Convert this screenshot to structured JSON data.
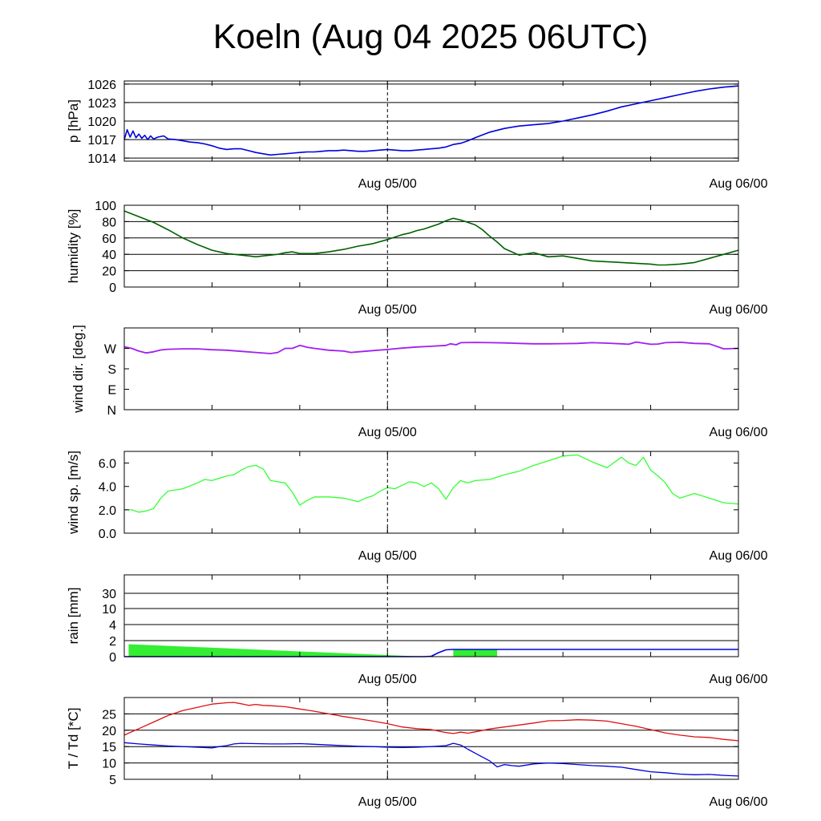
{
  "title": "Koeln (Aug 04 2025 06UTC)",
  "colors": {
    "pressure": "#0000e0",
    "humidity": "#006000",
    "wind_dir": "#a020f0",
    "wind_speed": "#33ff33",
    "rain_fill": "#33ee33",
    "rain_line": "#0000e0",
    "temperature": "#e01010",
    "dewpoint": "#0000e0",
    "gridline": "#000000"
  },
  "chart_data": [
    {
      "type": "line",
      "ylabel": "p [hPa]",
      "x_unit": "hours from Aug 04 06UTC",
      "xlim": [
        0,
        42
      ],
      "x_ticks": [
        {
          "x": 18,
          "label": "Aug 05/00"
        },
        {
          "x": 42,
          "label": "Aug 06/00"
        }
      ],
      "vline_x": 18,
      "ylim": [
        1013.5,
        1026.5
      ],
      "y_ticks": [
        "1014",
        "1017",
        "1020",
        "1023",
        "1026"
      ],
      "grid": true,
      "series": [
        {
          "x": [
            0,
            0.2,
            0.4,
            0.6,
            0.8,
            1,
            1.2,
            1.4,
            1.6,
            1.8,
            2,
            2.3,
            2.7,
            3,
            3.5,
            4,
            4.5,
            5,
            5.5,
            6,
            6.5,
            7,
            7.5,
            8,
            8.5,
            9,
            9.5,
            10,
            10.5,
            11,
            11.5,
            12,
            12.5,
            13,
            13.5,
            14,
            14.5,
            15,
            15.5,
            16,
            16.5,
            17,
            17.5,
            18,
            18.5,
            19,
            19.5,
            20,
            20.5,
            21,
            21.5,
            22,
            22.5,
            23,
            23.5,
            24,
            25,
            26,
            27,
            28,
            29,
            30,
            31,
            32,
            33,
            34,
            35,
            36,
            37,
            38,
            39,
            40,
            41,
            41.5,
            42
          ],
          "y": [
            1017.0,
            1018.6,
            1017.4,
            1018.4,
            1017.3,
            1017.9,
            1017.2,
            1017.7,
            1017.0,
            1017.6,
            1017.1,
            1017.4,
            1017.6,
            1017.1,
            1017.0,
            1016.8,
            1016.6,
            1016.5,
            1016.3,
            1016.0,
            1015.6,
            1015.4,
            1015.5,
            1015.5,
            1015.2,
            1014.9,
            1014.7,
            1014.5,
            1014.6,
            1014.7,
            1014.8,
            1014.9,
            1015.0,
            1015.0,
            1015.1,
            1015.2,
            1015.2,
            1015.3,
            1015.2,
            1015.1,
            1015.1,
            1015.2,
            1015.3,
            1015.4,
            1015.3,
            1015.2,
            1015.2,
            1015.3,
            1015.4,
            1015.5,
            1015.6,
            1015.8,
            1016.2,
            1016.4,
            1016.8,
            1017.3,
            1018.2,
            1018.8,
            1019.2,
            1019.4,
            1019.6,
            1020.0,
            1020.5,
            1021.0,
            1021.6,
            1022.3,
            1022.8,
            1023.3,
            1023.8,
            1024.3,
            1024.8,
            1025.2,
            1025.5,
            1025.6,
            1025.7
          ]
        }
      ]
    },
    {
      "type": "line",
      "ylabel": "humidity [%]",
      "x_unit": "hours from Aug 04 06UTC",
      "xlim": [
        0,
        42
      ],
      "x_ticks": [
        {
          "x": 18,
          "label": "Aug 05/00"
        },
        {
          "x": 42,
          "label": "Aug 06/00"
        }
      ],
      "vline_x": 18,
      "ylim": [
        0,
        100
      ],
      "y_ticks": [
        "0",
        "20",
        "40",
        "60",
        "80",
        "100"
      ],
      "grid": true,
      "series": [
        {
          "x": [
            0,
            1,
            2,
            3,
            4,
            5,
            6,
            7,
            7.5,
            8,
            8.5,
            9,
            9.5,
            10,
            10.5,
            11,
            11.5,
            12,
            13,
            14,
            15,
            16,
            17,
            18,
            19,
            19.5,
            20,
            20.5,
            21,
            21.5,
            22,
            22.5,
            23,
            23.5,
            24,
            24.5,
            25,
            25.5,
            26,
            27,
            28,
            29,
            30,
            31,
            32,
            33,
            34,
            35,
            36,
            36.5,
            37,
            38,
            39,
            40,
            41,
            42
          ],
          "y": [
            93,
            86,
            79,
            70,
            60,
            52,
            45,
            41,
            40,
            39,
            38,
            37,
            38,
            39,
            40,
            42,
            43,
            41,
            41,
            43,
            46,
            50,
            53,
            58,
            64,
            66,
            69,
            71,
            74,
            77,
            81,
            84,
            82,
            79,
            76,
            70,
            62,
            55,
            47,
            39,
            42,
            37,
            38,
            35,
            32,
            31,
            30,
            29,
            28,
            27,
            27,
            28,
            30,
            35,
            40,
            45
          ]
        }
      ]
    },
    {
      "type": "line",
      "ylabel": "wind dir. [deg.]",
      "x_unit": "hours from Aug 04 06UTC",
      "xlim": [
        0,
        42
      ],
      "x_ticks": [
        {
          "x": 18,
          "label": "Aug 05/00"
        },
        {
          "x": 42,
          "label": "Aug 06/00"
        }
      ],
      "vline_x": 18,
      "ylim": [
        0,
        360
      ],
      "y_ticks": [
        "N",
        "E",
        "S",
        "W"
      ],
      "grid": false,
      "series": [
        {
          "x": [
            0,
            0.5,
            1,
            1.5,
            2,
            2.5,
            3,
            4,
            5,
            6,
            7,
            8,
            9,
            10,
            10.5,
            11,
            11.5,
            12,
            12.5,
            13,
            14,
            15,
            15.5,
            16,
            17,
            18,
            19,
            20,
            21,
            22,
            22.3,
            22.7,
            23,
            24,
            25,
            26,
            27,
            28,
            29,
            30,
            31,
            32,
            33,
            34,
            34.5,
            35,
            36,
            36.5,
            37,
            38,
            39,
            40,
            41,
            42
          ],
          "y": [
            277,
            270,
            258,
            250,
            255,
            263,
            266,
            268,
            268,
            264,
            262,
            257,
            252,
            247,
            252,
            270,
            270,
            283,
            275,
            270,
            262,
            258,
            252,
            255,
            260,
            265,
            271,
            276,
            279,
            283,
            290,
            286,
            295,
            296,
            295,
            294,
            292,
            290,
            290,
            291,
            292,
            295,
            293,
            290,
            288,
            298,
            288,
            289,
            295,
            297,
            292,
            290,
            268,
            270
          ]
        }
      ]
    },
    {
      "type": "line",
      "ylabel": "wind sp. [m/s]",
      "x_unit": "hours from Aug 04 06UTC",
      "xlim": [
        0,
        42
      ],
      "x_ticks": [
        {
          "x": 18,
          "label": "Aug 05/00"
        },
        {
          "x": 42,
          "label": "Aug 06/00"
        }
      ],
      "vline_x": 18,
      "ylim": [
        0,
        7
      ],
      "y_ticks": [
        "0.0",
        "2.0",
        "4.0",
        "6.0"
      ],
      "grid": false,
      "series": [
        {
          "x": [
            0,
            0.5,
            1,
            1.5,
            2,
            2.5,
            3,
            4,
            5,
            5.5,
            6,
            7,
            7.5,
            8,
            8.5,
            9,
            9.5,
            10,
            10.5,
            11,
            11.5,
            12,
            12.5,
            13,
            14,
            15,
            16,
            16.5,
            17,
            17.5,
            18,
            18.5,
            19,
            19.5,
            20,
            20.5,
            21,
            21.5,
            22,
            22.5,
            23,
            23.5,
            24,
            25,
            26,
            27,
            28,
            29,
            30,
            31,
            32,
            33,
            34,
            34.5,
            35,
            35.5,
            36,
            36.5,
            37,
            37.5,
            38,
            39,
            40,
            41,
            42
          ],
          "y": [
            2.0,
            2.0,
            1.8,
            1.9,
            2.1,
            3.0,
            3.6,
            3.8,
            4.3,
            4.6,
            4.5,
            4.9,
            5.0,
            5.4,
            5.7,
            5.8,
            5.5,
            4.5,
            4.4,
            4.3,
            3.5,
            2.4,
            2.8,
            3.1,
            3.1,
            3.0,
            2.7,
            3.0,
            3.2,
            3.6,
            3.9,
            3.8,
            4.1,
            4.4,
            4.3,
            4.0,
            4.3,
            3.8,
            2.9,
            3.9,
            4.5,
            4.3,
            4.5,
            4.6,
            5.0,
            5.3,
            5.8,
            6.2,
            6.6,
            6.7,
            6.1,
            5.6,
            6.5,
            6.0,
            5.8,
            6.5,
            5.4,
            4.9,
            4.3,
            3.4,
            3.0,
            3.4,
            3.0,
            2.6,
            2.5
          ]
        }
      ]
    },
    {
      "type": "area",
      "ylabel": "rain [mm]",
      "x_unit": "hours from Aug 04 06UTC",
      "xlim": [
        0,
        42
      ],
      "x_ticks": [
        {
          "x": 18,
          "label": "Aug 05/00"
        },
        {
          "x": 42,
          "label": "Aug 06/00"
        }
      ],
      "vline_x": 18,
      "y_ticks": [
        "0",
        "2",
        "4",
        "10",
        "30"
      ],
      "y_tick_values": [
        0,
        2,
        4,
        10,
        30
      ],
      "grid": true,
      "bars": [
        {
          "x0": 0.3,
          "x1": 20.5,
          "top_start": 1.55,
          "top_end": 0.0
        },
        {
          "x0": 22.5,
          "x1": 25.5,
          "top_start": 0.9,
          "top_end": 0.9
        }
      ],
      "series": [
        {
          "x": [
            0,
            20.5,
            21,
            21.5,
            22,
            22.5,
            42
          ],
          "y": [
            0,
            0,
            0.05,
            0.5,
            0.85,
            0.9,
            0.9
          ]
        }
      ]
    },
    {
      "type": "line",
      "ylabel": "T / Td [*C]",
      "x_unit": "hours from Aug 04 06UTC",
      "xlim": [
        0,
        42
      ],
      "x_ticks": [
        {
          "x": 18,
          "label": "Aug 05/00"
        },
        {
          "x": 42,
          "label": "Aug 06/00"
        }
      ],
      "vline_x": 18,
      "ylim": [
        5,
        30
      ],
      "y_ticks": [
        "5",
        "10",
        "15",
        "20",
        "25"
      ],
      "grid": true,
      "series": [
        {
          "x": [
            0,
            1,
            2,
            3,
            4,
            5,
            6,
            7,
            7.5,
            8,
            8.5,
            9,
            9.5,
            10,
            11,
            12,
            13,
            14,
            15,
            16,
            17,
            18,
            19,
            20,
            21,
            22,
            22.5,
            23,
            23.5,
            24,
            25,
            26,
            27,
            28,
            29,
            30,
            31,
            32,
            33,
            34,
            35,
            36,
            37,
            38,
            39,
            40,
            41,
            42
          ],
          "y": [
            18.5,
            20.5,
            22.5,
            24.5,
            26.0,
            27.0,
            28.0,
            28.4,
            28.5,
            28.1,
            27.6,
            27.9,
            27.6,
            27.5,
            27.2,
            26.5,
            25.8,
            25.0,
            24.2,
            23.5,
            22.8,
            22.0,
            21.0,
            20.5,
            20.2,
            19.3,
            19.0,
            19.4,
            19.1,
            19.5,
            20.4,
            21.0,
            21.6,
            22.2,
            22.9,
            23.0,
            23.2,
            23.1,
            22.8,
            22.0,
            21.2,
            20.2,
            19.2,
            18.5,
            18.0,
            17.8,
            17.2,
            16.8
          ]
        },
        {
          "x": [
            0,
            1,
            2,
            3,
            4,
            5,
            6,
            6.5,
            7,
            7.5,
            8,
            9,
            10,
            11,
            12,
            13,
            14,
            15,
            16,
            17,
            18,
            19,
            20,
            21,
            22,
            22.5,
            23,
            23.5,
            24,
            25,
            25.5,
            26,
            26.5,
            27,
            28,
            29,
            30,
            31,
            32,
            33,
            34,
            35,
            36,
            37,
            38,
            39,
            40,
            41,
            42
          ],
          "y": [
            16.2,
            15.8,
            15.5,
            15.2,
            15.0,
            14.8,
            14.6,
            15.0,
            15.3,
            15.8,
            16.0,
            15.9,
            15.8,
            15.8,
            15.9,
            15.7,
            15.5,
            15.3,
            15.1,
            15.0,
            14.8,
            14.7,
            14.8,
            15.0,
            15.3,
            16.0,
            15.5,
            14.2,
            13.0,
            10.6,
            8.8,
            9.5,
            9.2,
            9.0,
            9.7,
            10.0,
            9.8,
            9.5,
            9.2,
            9.0,
            8.7,
            8.0,
            7.3,
            7.0,
            6.6,
            6.4,
            6.5,
            6.2,
            6.0
          ]
        }
      ]
    }
  ]
}
